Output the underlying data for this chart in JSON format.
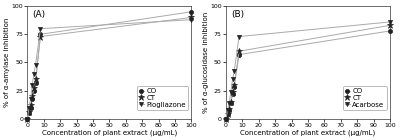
{
  "panel_A": {
    "label": "(A)",
    "ylabel": "% of α-amylase inhibition",
    "xlabel": "Concentration of plant extract (μg/mL)",
    "xlim": [
      0,
      100
    ],
    "ylim": [
      0,
      100
    ],
    "xticks": [
      0,
      10,
      20,
      30,
      40,
      50,
      60,
      70,
      80,
      90,
      100
    ],
    "yticks": [
      0,
      25,
      50,
      75,
      100
    ],
    "series": [
      {
        "name": "CO",
        "x": [
          0,
          1,
          2,
          3,
          4,
          5,
          8,
          100
        ],
        "y": [
          0,
          5,
          10,
          18,
          25,
          32,
          75,
          95
        ],
        "marker": "o",
        "linestyle": "-"
      },
      {
        "name": "CT",
        "x": [
          0,
          1,
          2,
          3,
          4,
          5,
          8,
          100
        ],
        "y": [
          0,
          6,
          12,
          20,
          27,
          35,
          73,
          90
        ],
        "marker": "*",
        "linestyle": "-"
      },
      {
        "name": "Piogliazone",
        "x": [
          0,
          1,
          2,
          3,
          4,
          5,
          8,
          100
        ],
        "y": [
          0,
          10,
          18,
          30,
          40,
          48,
          80,
          88
        ],
        "marker": "v",
        "linestyle": "-"
      }
    ]
  },
  "panel_B": {
    "label": "(B)",
    "ylabel": "% of α-glucosidase inhibition",
    "xlabel": "Concentration of plant extract (μg/mL)",
    "xlim": [
      0,
      100
    ],
    "ylim": [
      0,
      100
    ],
    "xticks": [
      0,
      10,
      20,
      30,
      40,
      50,
      60,
      70,
      80,
      90,
      100
    ],
    "yticks": [
      0,
      25,
      50,
      75,
      100
    ],
    "series": [
      {
        "name": "CO",
        "x": [
          0,
          1,
          2,
          3,
          4,
          5,
          8,
          100
        ],
        "y": [
          0,
          4,
          8,
          14,
          22,
          28,
          57,
          78
        ],
        "marker": "o",
        "linestyle": "-"
      },
      {
        "name": "CT",
        "x": [
          0,
          1,
          2,
          3,
          4,
          5,
          8,
          100
        ],
        "y": [
          0,
          4,
          9,
          15,
          24,
          30,
          60,
          83
        ],
        "marker": "*",
        "linestyle": "-"
      },
      {
        "name": "Acarbose",
        "x": [
          0,
          1,
          2,
          3,
          4,
          5,
          8,
          100
        ],
        "y": [
          0,
          8,
          14,
          24,
          35,
          42,
          73,
          86
        ],
        "marker": "v",
        "linestyle": "-"
      }
    ]
  },
  "line_color": "#aaaaaa",
  "marker_color": "#222222",
  "marker_edge_color": "#222222",
  "background": "#ffffff",
  "fig_background": "#ffffff",
  "font_size": 5.0,
  "label_font_size": 6.5,
  "legend_font_size": 5.0,
  "marker_size": 3.0,
  "linewidth": 0.7,
  "tick_fontsize": 4.5
}
